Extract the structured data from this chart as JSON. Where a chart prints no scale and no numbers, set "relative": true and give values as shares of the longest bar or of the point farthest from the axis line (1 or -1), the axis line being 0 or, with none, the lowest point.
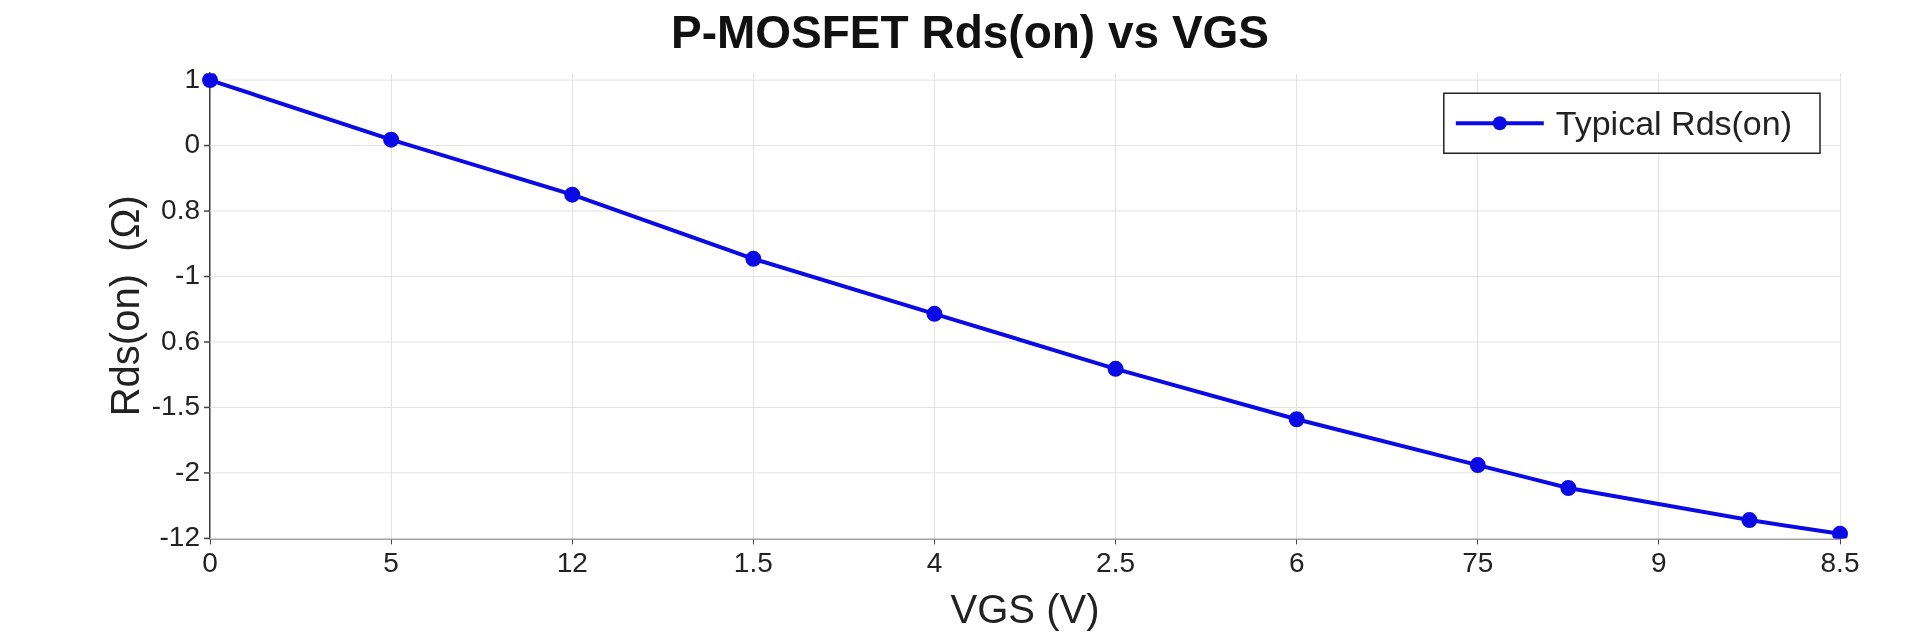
{
  "chart_data": {
    "type": "line",
    "title": "P-MOSFET Rds(on) vs VGS",
    "xlabel": "VGS (V)",
    "ylabel": "Rds(on)  (Ω)",
    "categories": [
      "0",
      null,
      "5",
      null,
      "12",
      null,
      "1.5",
      null,
      "4",
      null,
      "2.5",
      null,
      "6",
      null,
      "75",
      null,
      "9",
      null,
      "8.5"
    ],
    "relative": true,
    "series": [
      {
        "name": "Typical Rds(on)",
        "color": "#0a0ae6",
        "values": [
          1,
          null,
          0.87,
          null,
          0.75,
          null,
          0.61,
          null,
          0.49,
          null,
          0.37,
          null,
          0.26,
          null,
          0.16,
          0.11,
          null,
          0.04,
          0.01
        ]
      }
    ],
    "annotations": [
      "1",
      "0",
      "0.8",
      "-1",
      "0.6",
      "-1.5",
      "-2",
      "-12"
    ],
    "grid": true,
    "legend": "top right",
    "marker": "circle",
    "line_style": "solid"
  }
}
